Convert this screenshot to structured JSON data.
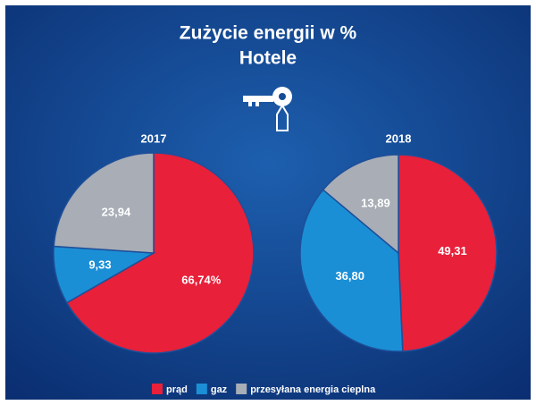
{
  "header": {
    "title": "Zużycie energii w %",
    "subtitle": "Hotele"
  },
  "chart_data": [
    {
      "type": "pie",
      "title": "2017",
      "categories": [
        "prąd",
        "gaz",
        "przesyłana energia cieplna"
      ],
      "values": [
        66.74,
        9.33,
        23.94
      ],
      "value_labels": [
        "66,74%",
        "9,33",
        "23,94"
      ],
      "colors": [
        "#e8203a",
        "#1b8fd6",
        "#a8adb6"
      ]
    },
    {
      "type": "pie",
      "title": "2018",
      "categories": [
        "prąd",
        "gaz",
        "przesyłana energia cieplna"
      ],
      "values": [
        49.31,
        36.8,
        13.89
      ],
      "value_labels": [
        "49,31",
        "36,80",
        "13,89"
      ],
      "colors": [
        "#e8203a",
        "#1b8fd6",
        "#a8adb6"
      ]
    }
  ]
}
